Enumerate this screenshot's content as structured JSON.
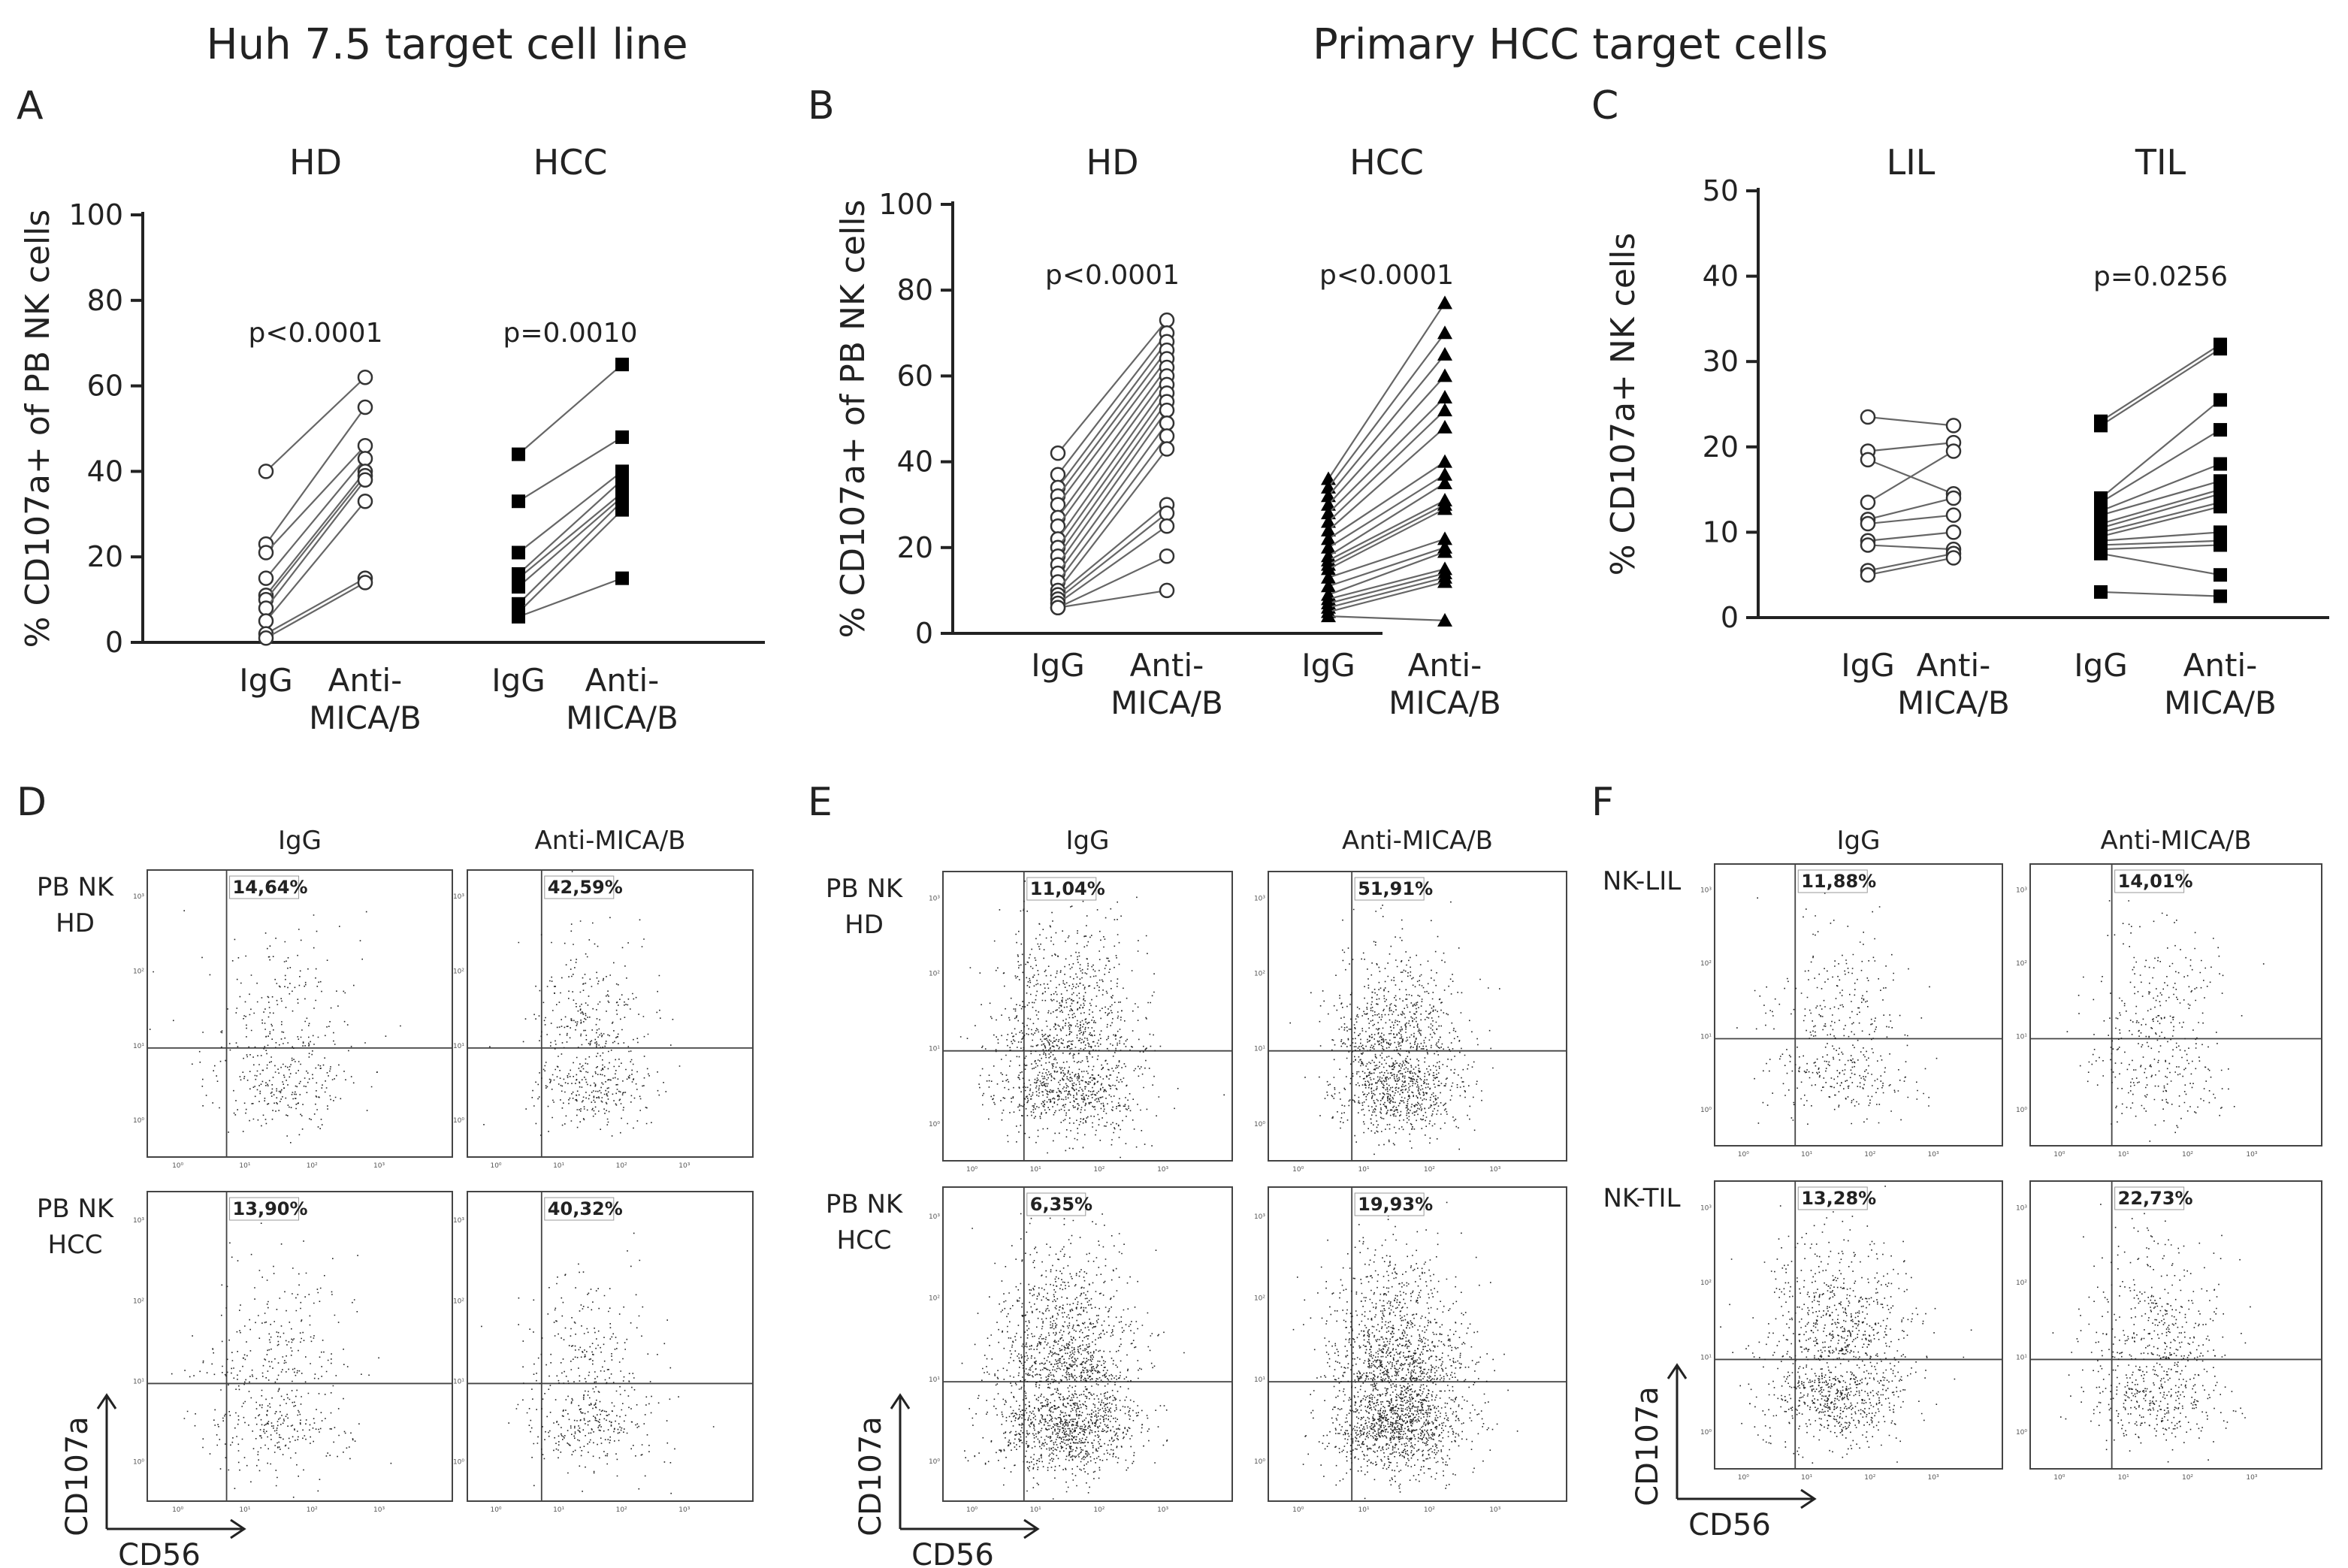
{
  "titles": {
    "left": "Huh 7.5 target cell line",
    "right": "Primary HCC target cells"
  },
  "panel_letters": [
    "A",
    "B",
    "C",
    "D",
    "E",
    "F"
  ],
  "chart_data": [
    {
      "panel": "A",
      "type": "scatter",
      "ylabel": "% CD107a+ of PB NK cells",
      "ylim": [
        0,
        100
      ],
      "yticks": [
        0,
        20,
        40,
        60,
        80,
        100
      ],
      "groups": [
        {
          "label": "HD",
          "categories": [
            "IgG",
            "Anti-\nMICA/B"
          ],
          "p": "p<0.0001",
          "marker": "open-circle",
          "pairs": [
            [
              40,
              62
            ],
            [
              23,
              55
            ],
            [
              21,
              46
            ],
            [
              15,
              43
            ],
            [
              11,
              40
            ],
            [
              10,
              39
            ],
            [
              8,
              38
            ],
            [
              5,
              33
            ],
            [
              2,
              15
            ],
            [
              1,
              14
            ]
          ]
        },
        {
          "label": "HCC",
          "categories": [
            "IgG",
            "Anti-\nMICA/B"
          ],
          "p": "p=0.0010",
          "marker": "filled-square",
          "pairs": [
            [
              44,
              65
            ],
            [
              33,
              48
            ],
            [
              21,
              40
            ],
            [
              16,
              38
            ],
            [
              15,
              35
            ],
            [
              13,
              34
            ],
            [
              9,
              33
            ],
            [
              7,
              31
            ],
            [
              6,
              15
            ]
          ]
        }
      ]
    },
    {
      "panel": "B",
      "type": "scatter",
      "ylabel": "% CD107a+ of PB NK cells",
      "ylim": [
        0,
        100
      ],
      "yticks": [
        0,
        20,
        40,
        60,
        80,
        100
      ],
      "groups": [
        {
          "label": "HD",
          "categories": [
            "IgG",
            "Anti-\nMICA/B"
          ],
          "p": "p<0.0001",
          "marker": "open-circle",
          "pairs": [
            [
              42,
              73
            ],
            [
              37,
              70
            ],
            [
              34,
              68
            ],
            [
              32,
              66
            ],
            [
              30,
              64
            ],
            [
              27,
              62
            ],
            [
              25,
              60
            ],
            [
              22,
              58
            ],
            [
              20,
              56
            ],
            [
              18,
              54
            ],
            [
              16,
              52
            ],
            [
              14,
              49
            ],
            [
              12,
              46
            ],
            [
              10,
              43
            ],
            [
              9,
              30
            ],
            [
              8,
              28
            ],
            [
              7,
              25
            ],
            [
              6,
              18
            ],
            [
              6,
              10
            ]
          ]
        },
        {
          "label": "HCC",
          "categories": [
            "IgG",
            "Anti-\nMICA/B"
          ],
          "p": "p<0.0001",
          "marker": "filled-triangle",
          "pairs": [
            [
              36,
              77
            ],
            [
              34,
              70
            ],
            [
              32,
              65
            ],
            [
              30,
              60
            ],
            [
              28,
              55
            ],
            [
              26,
              52
            ],
            [
              24,
              48
            ],
            [
              22,
              40
            ],
            [
              20,
              37
            ],
            [
              18,
              35
            ],
            [
              17,
              31
            ],
            [
              16,
              30
            ],
            [
              15,
              29
            ],
            [
              13,
              22
            ],
            [
              11,
              20
            ],
            [
              9,
              19
            ],
            [
              8,
              15
            ],
            [
              7,
              14
            ],
            [
              6,
              13
            ],
            [
              5,
              12
            ],
            [
              4,
              3
            ]
          ]
        }
      ]
    },
    {
      "panel": "C",
      "type": "scatter",
      "ylabel": "% CD107a+ NK cells",
      "ylim": [
        0,
        50
      ],
      "yticks": [
        0,
        10,
        20,
        30,
        40,
        50
      ],
      "groups": [
        {
          "label": "LIL",
          "categories": [
            "IgG",
            "Anti-\nMICA/B"
          ],
          "p": "",
          "marker": "open-circle",
          "pairs": [
            [
              23.5,
              22.5
            ],
            [
              19.5,
              20.5
            ],
            [
              18.5,
              14.5
            ],
            [
              13.5,
              19.5
            ],
            [
              11.5,
              14.0
            ],
            [
              11.0,
              12.0
            ],
            [
              9.0,
              10.0
            ],
            [
              8.5,
              8.0
            ],
            [
              5.5,
              7.5
            ],
            [
              5.0,
              7.0
            ]
          ]
        },
        {
          "label": "TIL",
          "categories": [
            "IgG",
            "Anti-\nMICA/B"
          ],
          "p": "p=0.0256",
          "marker": "filled-square",
          "pairs": [
            [
              23.0,
              32.0
            ],
            [
              22.5,
              31.5
            ],
            [
              14.0,
              25.5
            ],
            [
              13.5,
              22.0
            ],
            [
              12.5,
              18.0
            ],
            [
              12.0,
              16.0
            ],
            [
              11.0,
              15.0
            ],
            [
              10.5,
              14.5
            ],
            [
              10.0,
              13.5
            ],
            [
              9.5,
              13.0
            ],
            [
              9.0,
              10.0
            ],
            [
              8.5,
              9.0
            ],
            [
              8.0,
              8.5
            ],
            [
              7.5,
              5.0
            ],
            [
              3.0,
              2.5
            ]
          ]
        }
      ]
    }
  ],
  "flow": {
    "x_axis_name": "CD56",
    "y_axis_name": "CD107a",
    "panels": [
      {
        "letter": "D",
        "col_labels": [
          "IgG",
          "Anti-MICA/B"
        ],
        "rows": [
          {
            "label": "PB NK\nHD",
            "percents": [
              "14,64%",
              "42,59%"
            ]
          },
          {
            "label": "PB NK\nHCC",
            "percents": [
              "13,90%",
              "40,32%"
            ]
          }
        ]
      },
      {
        "letter": "E",
        "col_labels": [
          "IgG",
          "Anti-MICA/B"
        ],
        "rows": [
          {
            "label": "PB NK\nHD",
            "percents": [
              "11,04%",
              "51,91%"
            ]
          },
          {
            "label": "PB NK\nHCC",
            "percents": [
              "6,35%",
              "19,93%"
            ]
          }
        ]
      },
      {
        "letter": "F",
        "col_labels": [
          "IgG",
          "Anti-MICA/B"
        ],
        "rows": [
          {
            "label": "NK-LIL",
            "percents": [
              "11,88%",
              "14,01%"
            ]
          },
          {
            "label": "NK-TIL",
            "percents": [
              "13,28%",
              "22,73%"
            ]
          }
        ]
      }
    ],
    "log_ticks": [
      "10⁰",
      "10¹",
      "10²",
      "10³"
    ]
  }
}
